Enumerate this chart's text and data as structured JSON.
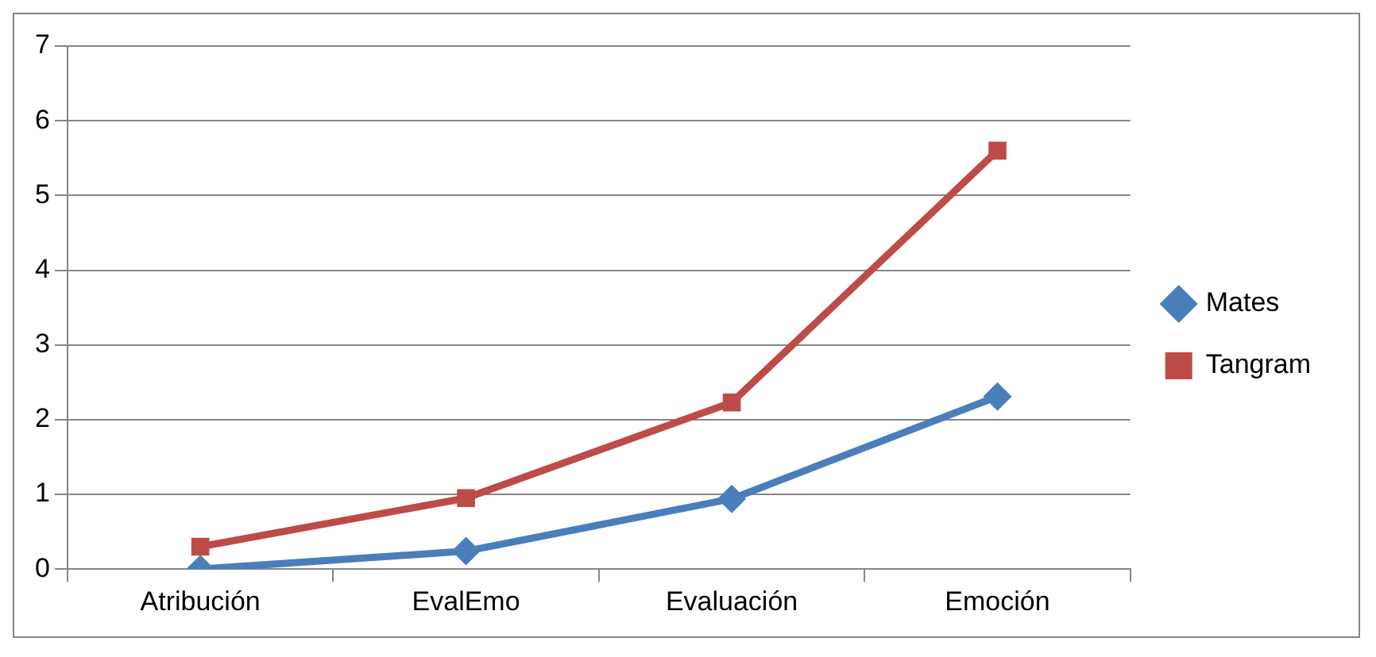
{
  "chart_data": {
    "type": "line",
    "categories": [
      "Atribución",
      "EvalEmo",
      "Evaluación",
      "Emoción"
    ],
    "series": [
      {
        "name": "Mates",
        "color": "#4a7ebb",
        "values": [
          0,
          0.24,
          0.94,
          2.31
        ],
        "marker": "diamond"
      },
      {
        "name": "Tangram",
        "color": "#be4b48",
        "values": [
          0.3,
          0.95,
          2.23,
          5.6
        ],
        "marker": "square"
      }
    ],
    "ylim": [
      0,
      7
    ],
    "yticks": [
      0,
      1,
      2,
      3,
      4,
      5,
      6,
      7
    ],
    "grid": "y",
    "legend": "right"
  }
}
